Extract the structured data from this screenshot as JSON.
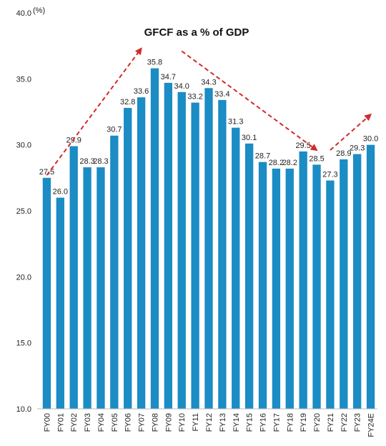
{
  "chart_data": {
    "type": "bar",
    "title": "GFCF as a % of GDP",
    "unit_label": "(%)",
    "categories": [
      "FY00",
      "FY01",
      "FY02",
      "FY03",
      "FY04",
      "FY05",
      "FY06",
      "FY07",
      "FY08",
      "FY09",
      "FY10",
      "FY11",
      "FY12",
      "FY13",
      "FY14",
      "FY15",
      "FY16",
      "FY17",
      "FY18",
      "FY19",
      "FY20",
      "FY21",
      "FY22",
      "FY23",
      "FY24E"
    ],
    "values": [
      27.5,
      26.0,
      29.9,
      28.3,
      28.3,
      30.7,
      32.8,
      33.6,
      35.8,
      34.7,
      34.0,
      33.2,
      34.3,
      33.4,
      31.3,
      30.1,
      28.7,
      28.2,
      28.2,
      29.5,
      28.5,
      27.3,
      28.9,
      29.3,
      30.0
    ],
    "data_labels": [
      "27.5",
      "26.0",
      "29.9",
      "28.3",
      "28.3",
      "30.7",
      "32.8",
      "33.6",
      "35.8",
      "34.7",
      "34.0",
      "33.2",
      "34.3",
      "33.4",
      "31.3",
      "30.1",
      "28.7",
      "28.2",
      "28.2",
      "29.5",
      "28.5",
      "27.3",
      "28.9",
      "29.3",
      "30.0"
    ],
    "yticks": [
      "10.0",
      "15.0",
      "20.0",
      "25.0",
      "30.0",
      "35.0",
      "40.0"
    ],
    "ylim": [
      10,
      40
    ],
    "bar_color": "#1b8cc4",
    "trend_color": "#d22b2b",
    "trend_arrows": [
      {
        "from": {
          "x": "FY00",
          "y": 27.7
        },
        "to": {
          "x": "FY07",
          "y": 37.3
        }
      },
      {
        "from": {
          "x": "FY10",
          "y": 37.1
        },
        "to": {
          "x": "FY20",
          "y": 29.6
        }
      },
      {
        "from": {
          "x": "FY21",
          "y": 29.6
        },
        "to": {
          "x": "FY24E",
          "y": 32.3
        }
      }
    ],
    "grid": false,
    "legend": "none"
  }
}
